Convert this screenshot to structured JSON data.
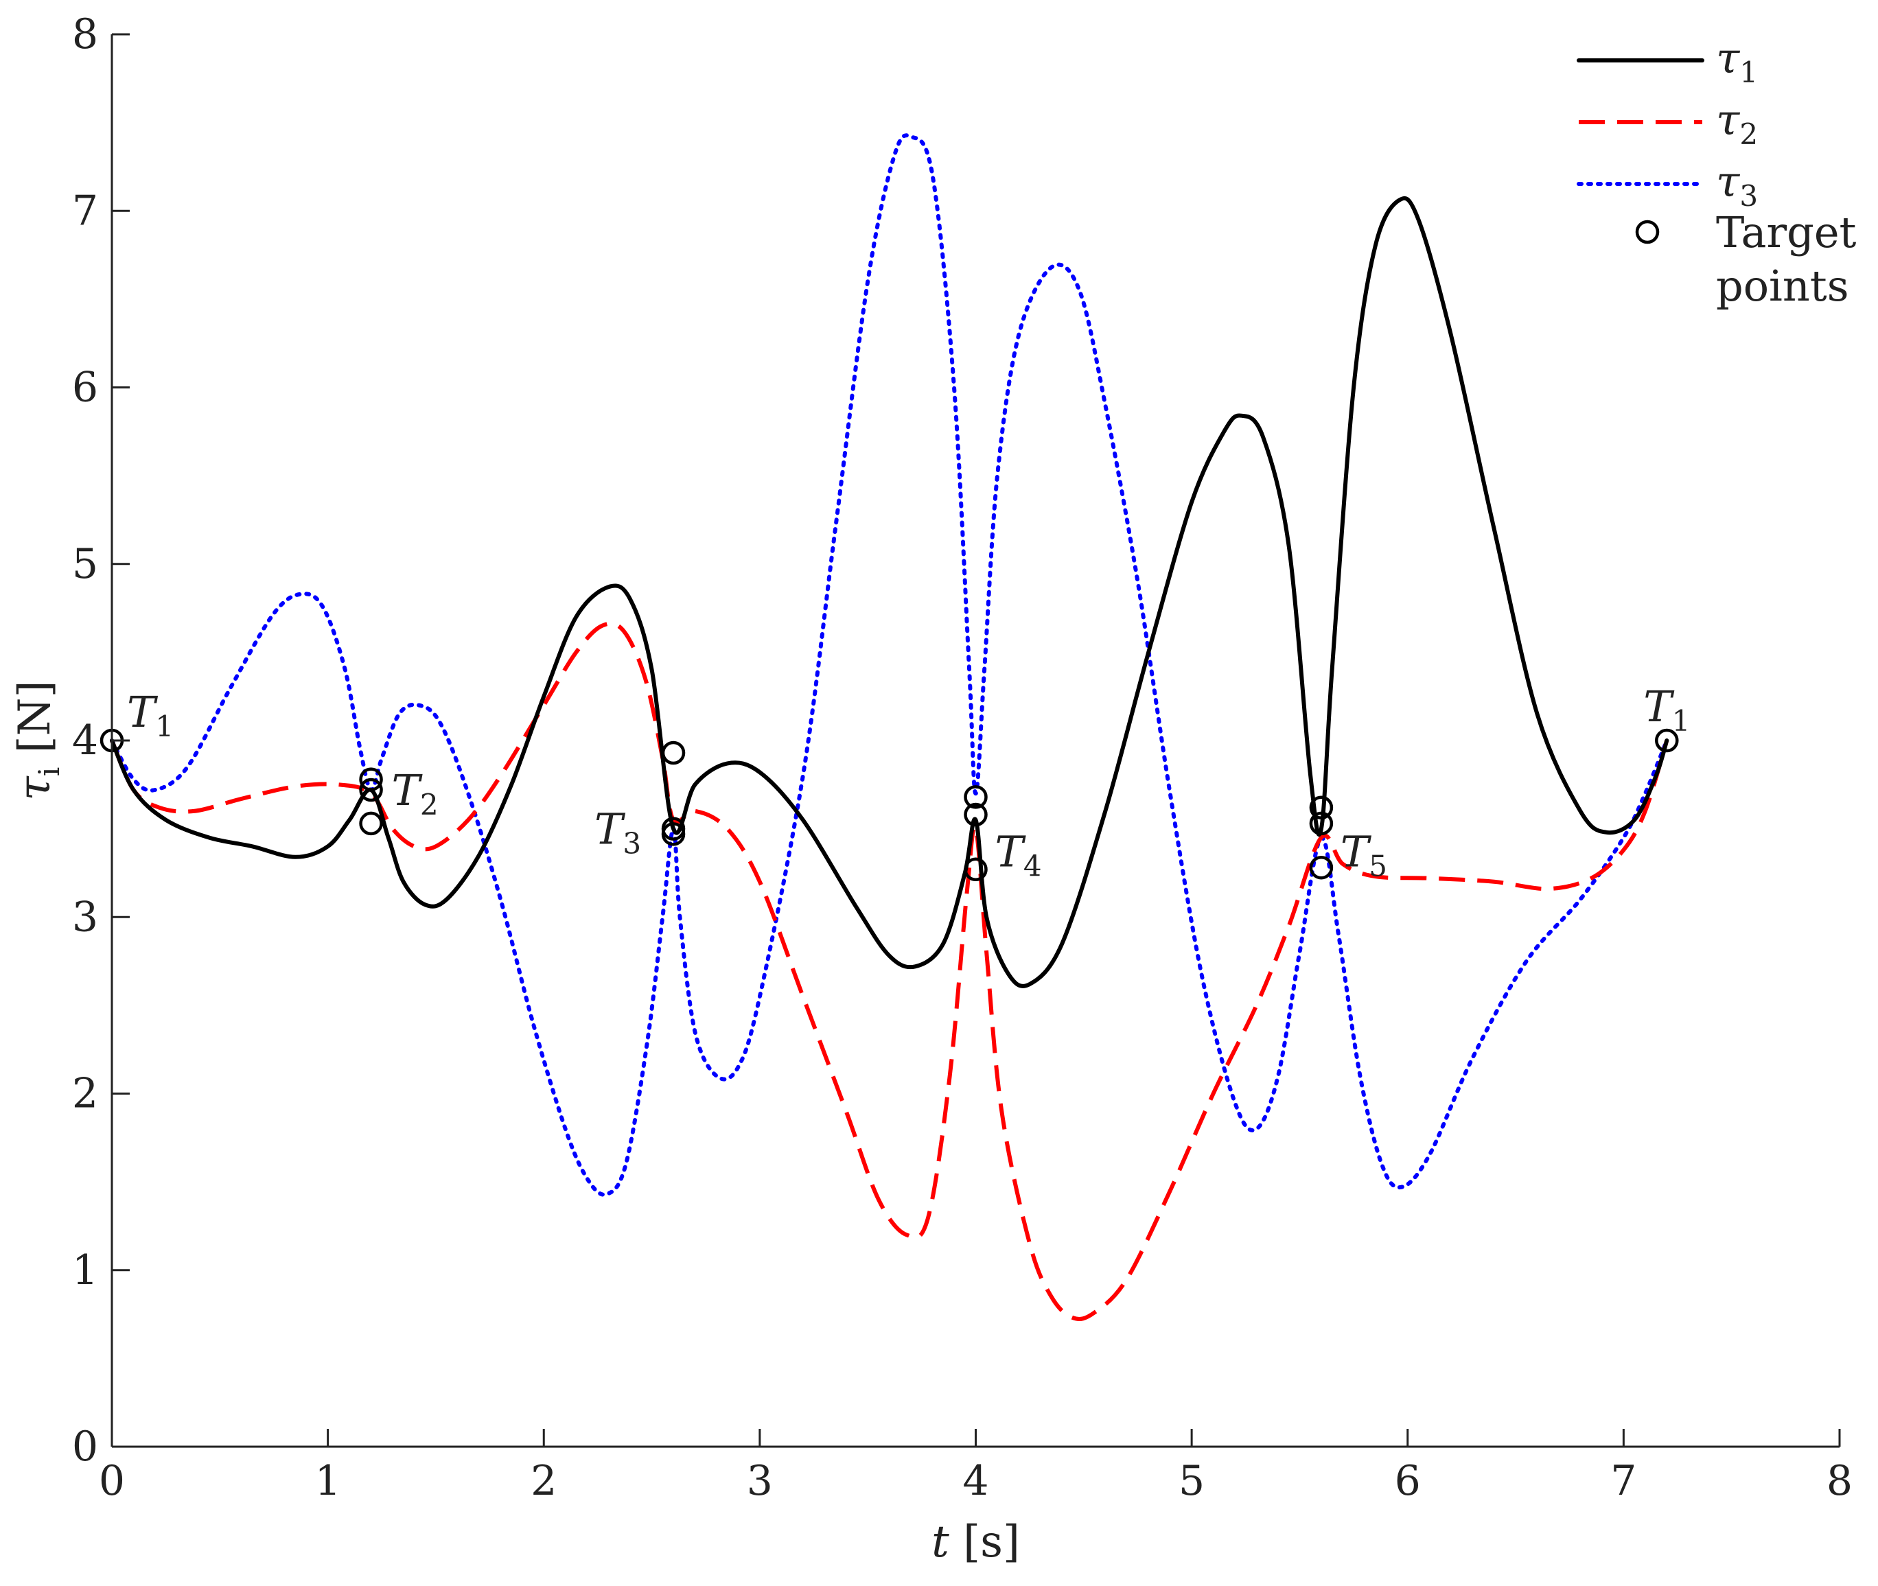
{
  "chart_data": {
    "type": "line",
    "xlabel": {
      "var": "t",
      "unit": "[s]"
    },
    "ylabel": {
      "var": "τ",
      "sub": "i",
      "unit": "[N]"
    },
    "xlim": [
      0,
      8
    ],
    "ylim": [
      0,
      8
    ],
    "xticks": [
      "0",
      "1",
      "2",
      "3",
      "4",
      "5",
      "6",
      "7",
      "8"
    ],
    "yticks": [
      "0",
      "1",
      "2",
      "3",
      "4",
      "5",
      "6",
      "7",
      "8"
    ],
    "grid": false,
    "legend": {
      "position": "top-right",
      "entries": [
        {
          "label": "τ",
          "sub": "1",
          "style": "solid",
          "color": "#000000"
        },
        {
          "label": "τ",
          "sub": "2",
          "style": "dashed",
          "color": "#ff0000"
        },
        {
          "label": "τ",
          "sub": "3",
          "style": "dotted",
          "color": "#0000ff"
        },
        {
          "label_line1": "Target",
          "label_line2": "points",
          "style": "marker",
          "color": "#000000"
        }
      ]
    },
    "series": [
      {
        "id": "tau1",
        "color": "#000000",
        "style": "solid",
        "points": [
          [
            0,
            4.0
          ],
          [
            0.1,
            3.72
          ],
          [
            0.25,
            3.55
          ],
          [
            0.45,
            3.45
          ],
          [
            0.65,
            3.4
          ],
          [
            0.85,
            3.34
          ],
          [
            1.0,
            3.4
          ],
          [
            1.1,
            3.55
          ],
          [
            1.2,
            3.72
          ],
          [
            1.28,
            3.45
          ],
          [
            1.35,
            3.2
          ],
          [
            1.45,
            3.07
          ],
          [
            1.55,
            3.1
          ],
          [
            1.7,
            3.35
          ],
          [
            1.85,
            3.75
          ],
          [
            2.0,
            4.25
          ],
          [
            2.15,
            4.7
          ],
          [
            2.3,
            4.87
          ],
          [
            2.4,
            4.8
          ],
          [
            2.5,
            4.4
          ],
          [
            2.6,
            3.5
          ],
          [
            2.7,
            3.75
          ],
          [
            2.85,
            3.87
          ],
          [
            3.0,
            3.82
          ],
          [
            3.2,
            3.55
          ],
          [
            3.45,
            3.05
          ],
          [
            3.6,
            2.78
          ],
          [
            3.72,
            2.72
          ],
          [
            3.85,
            2.85
          ],
          [
            3.95,
            3.25
          ],
          [
            4.0,
            3.55
          ],
          [
            4.05,
            3.0
          ],
          [
            4.15,
            2.68
          ],
          [
            4.25,
            2.62
          ],
          [
            4.4,
            2.85
          ],
          [
            4.6,
            3.6
          ],
          [
            4.8,
            4.5
          ],
          [
            5.0,
            5.35
          ],
          [
            5.15,
            5.75
          ],
          [
            5.23,
            5.84
          ],
          [
            5.33,
            5.72
          ],
          [
            5.45,
            5.1
          ],
          [
            5.55,
            3.8
          ],
          [
            5.6,
            3.5
          ],
          [
            5.65,
            4.4
          ],
          [
            5.75,
            6.0
          ],
          [
            5.85,
            6.8
          ],
          [
            5.96,
            7.06
          ],
          [
            6.05,
            6.95
          ],
          [
            6.2,
            6.3
          ],
          [
            6.4,
            5.2
          ],
          [
            6.6,
            4.15
          ],
          [
            6.8,
            3.6
          ],
          [
            6.92,
            3.48
          ],
          [
            7.05,
            3.55
          ],
          [
            7.15,
            3.8
          ],
          [
            7.2,
            4.0
          ]
        ]
      },
      {
        "id": "tau2",
        "color": "#ff0000",
        "style": "dashed",
        "points": [
          [
            0,
            4.0
          ],
          [
            0.1,
            3.72
          ],
          [
            0.22,
            3.62
          ],
          [
            0.38,
            3.6
          ],
          [
            0.6,
            3.67
          ],
          [
            0.85,
            3.74
          ],
          [
            1.05,
            3.75
          ],
          [
            1.2,
            3.7
          ],
          [
            1.3,
            3.5
          ],
          [
            1.4,
            3.4
          ],
          [
            1.5,
            3.4
          ],
          [
            1.65,
            3.55
          ],
          [
            1.8,
            3.8
          ],
          [
            2.0,
            4.2
          ],
          [
            2.15,
            4.5
          ],
          [
            2.27,
            4.65
          ],
          [
            2.37,
            4.62
          ],
          [
            2.47,
            4.35
          ],
          [
            2.55,
            3.9
          ],
          [
            2.6,
            3.55
          ],
          [
            2.7,
            3.6
          ],
          [
            2.85,
            3.5
          ],
          [
            3.0,
            3.2
          ],
          [
            3.2,
            2.55
          ],
          [
            3.4,
            1.9
          ],
          [
            3.55,
            1.4
          ],
          [
            3.68,
            1.2
          ],
          [
            3.78,
            1.3
          ],
          [
            3.88,
            2.1
          ],
          [
            3.96,
            3.15
          ],
          [
            4.0,
            3.5
          ],
          [
            4.05,
            2.8
          ],
          [
            4.12,
            1.9
          ],
          [
            4.25,
            1.15
          ],
          [
            4.35,
            0.85
          ],
          [
            4.45,
            0.73
          ],
          [
            4.55,
            0.76
          ],
          [
            4.7,
            0.95
          ],
          [
            4.9,
            1.45
          ],
          [
            5.1,
            2.0
          ],
          [
            5.3,
            2.5
          ],
          [
            5.45,
            2.95
          ],
          [
            5.6,
            3.45
          ],
          [
            5.7,
            3.3
          ],
          [
            5.85,
            3.23
          ],
          [
            6.1,
            3.22
          ],
          [
            6.4,
            3.2
          ],
          [
            6.65,
            3.16
          ],
          [
            6.85,
            3.22
          ],
          [
            7.0,
            3.38
          ],
          [
            7.1,
            3.6
          ],
          [
            7.2,
            4.0
          ]
        ]
      },
      {
        "id": "tau3",
        "color": "#0000ff",
        "style": "dotted",
        "points": [
          [
            0,
            4.0
          ],
          [
            0.1,
            3.78
          ],
          [
            0.2,
            3.72
          ],
          [
            0.35,
            3.85
          ],
          [
            0.55,
            4.3
          ],
          [
            0.75,
            4.72
          ],
          [
            0.88,
            4.83
          ],
          [
            0.98,
            4.75
          ],
          [
            1.08,
            4.4
          ],
          [
            1.15,
            3.95
          ],
          [
            1.2,
            3.72
          ],
          [
            1.25,
            3.9
          ],
          [
            1.33,
            4.15
          ],
          [
            1.42,
            4.2
          ],
          [
            1.52,
            4.1
          ],
          [
            1.65,
            3.7
          ],
          [
            1.8,
            3.1
          ],
          [
            1.95,
            2.4
          ],
          [
            2.1,
            1.8
          ],
          [
            2.2,
            1.52
          ],
          [
            2.29,
            1.43
          ],
          [
            2.38,
            1.6
          ],
          [
            2.48,
            2.3
          ],
          [
            2.55,
            3.0
          ],
          [
            2.6,
            3.5
          ],
          [
            2.63,
            3.0
          ],
          [
            2.7,
            2.35
          ],
          [
            2.8,
            2.1
          ],
          [
            2.9,
            2.15
          ],
          [
            3.0,
            2.55
          ],
          [
            3.2,
            3.8
          ],
          [
            3.35,
            5.2
          ],
          [
            3.5,
            6.6
          ],
          [
            3.62,
            7.3
          ],
          [
            3.7,
            7.42
          ],
          [
            3.8,
            7.2
          ],
          [
            3.9,
            6.0
          ],
          [
            3.97,
            4.4
          ],
          [
            4.0,
            3.7
          ],
          [
            4.04,
            4.4
          ],
          [
            4.1,
            5.5
          ],
          [
            4.2,
            6.3
          ],
          [
            4.35,
            6.68
          ],
          [
            4.48,
            6.55
          ],
          [
            4.6,
            5.9
          ],
          [
            4.75,
            4.9
          ],
          [
            4.9,
            3.7
          ],
          [
            5.05,
            2.65
          ],
          [
            5.2,
            1.95
          ],
          [
            5.3,
            1.8
          ],
          [
            5.4,
            2.1
          ],
          [
            5.5,
            2.8
          ],
          [
            5.6,
            3.45
          ],
          [
            5.68,
            2.9
          ],
          [
            5.78,
            2.1
          ],
          [
            5.88,
            1.6
          ],
          [
            5.97,
            1.47
          ],
          [
            6.1,
            1.65
          ],
          [
            6.3,
            2.2
          ],
          [
            6.55,
            2.75
          ],
          [
            6.8,
            3.1
          ],
          [
            7.0,
            3.45
          ],
          [
            7.1,
            3.7
          ],
          [
            7.2,
            4.0
          ]
        ]
      }
    ],
    "target_points": [
      [
        0.0,
        4.0
      ],
      [
        1.2,
        3.78
      ],
      [
        1.2,
        3.72
      ],
      [
        1.2,
        3.53
      ],
      [
        2.6,
        3.93
      ],
      [
        2.6,
        3.5
      ],
      [
        2.6,
        3.47
      ],
      [
        4.0,
        3.68
      ],
      [
        4.0,
        3.58
      ],
      [
        4.0,
        3.27
      ],
      [
        5.6,
        3.62
      ],
      [
        5.6,
        3.53
      ],
      [
        5.6,
        3.28
      ],
      [
        7.2,
        4.0
      ]
    ],
    "annotations": [
      {
        "letter": "T",
        "sub": "1",
        "x": 0.0,
        "y": 4.0,
        "anchor": "upper-right"
      },
      {
        "letter": "T",
        "sub": "2",
        "x": 1.2,
        "y": 3.72,
        "anchor": "right"
      },
      {
        "letter": "T",
        "sub": "3",
        "x": 2.6,
        "y": 3.5,
        "anchor": "left"
      },
      {
        "letter": "T",
        "sub": "4",
        "x": 4.0,
        "y": 3.5,
        "anchor": "lower-right"
      },
      {
        "letter": "T",
        "sub": "5",
        "x": 5.6,
        "y": 3.5,
        "anchor": "lower-right"
      },
      {
        "letter": "T",
        "sub": "1",
        "x": 7.2,
        "y": 4.0,
        "anchor": "above"
      }
    ]
  }
}
